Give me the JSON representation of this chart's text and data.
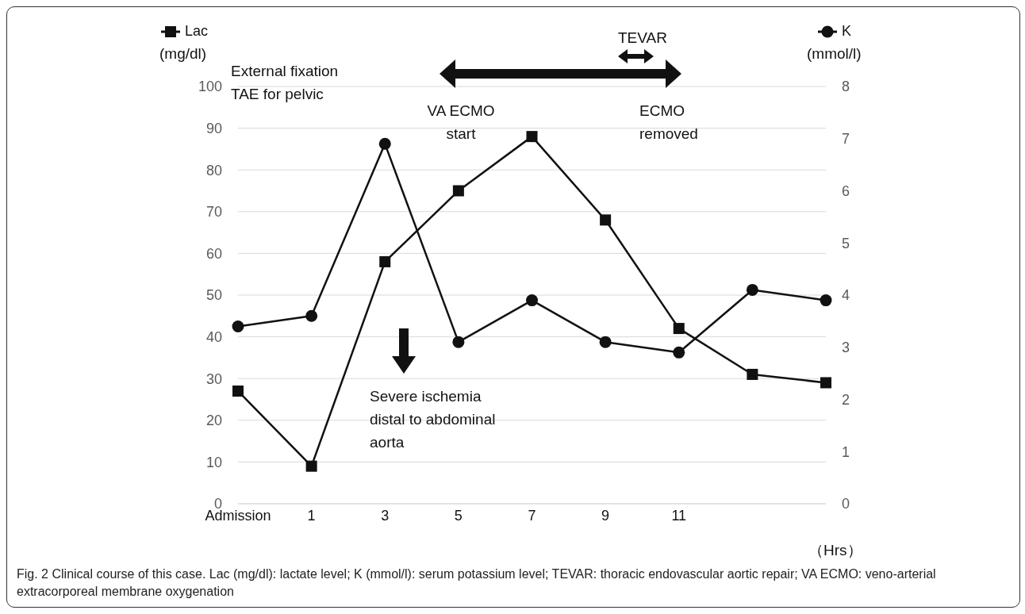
{
  "chart_data": {
    "type": "line",
    "categories": [
      "Admission",
      "1",
      "3",
      "5",
      "7",
      "9",
      "11",
      null,
      null
    ],
    "series": [
      {
        "name": "Lac",
        "color": "#111111",
        "marker": "square",
        "values": [
          27,
          9,
          58,
          75,
          88,
          68,
          42,
          31,
          29
        ]
      },
      {
        "name": "K",
        "color": "#111111",
        "marker": "circle",
        "axis": "y2",
        "values": [
          3.4,
          3.6,
          6.9,
          3.1,
          3.9,
          3.1,
          2.9,
          4.1,
          3.9
        ]
      }
    ],
    "ylabel": "(mg/dl)",
    "y2label": "(mmol/l)",
    "xlabel": "（Hrs）",
    "ylim": [
      0,
      100
    ],
    "yticks": [
      0,
      10,
      20,
      30,
      40,
      50,
      60,
      70,
      80,
      90,
      100
    ],
    "y2lim": [
      0,
      8
    ],
    "y2ticks": [
      0,
      1,
      2,
      3,
      4,
      5,
      6,
      7,
      8
    ],
    "grid": "y",
    "legend": "top",
    "line_style": "solid",
    "annotations": [
      "External fixation\nTAE for pelvic",
      "TEVAR",
      "VA ECMO\nstart",
      "ECMO\nremoved",
      "Severe ischemia\ndistal to abdominal\naorta",
      "Fig. 2 Clinical course of this case. Lac (mg/dl): lactate level; K (mmol/l): serum potassium level; TEVAR: thoracic endovascular aortic repair; VA ECMO: veno-arterial extracorporeal membrane oxygenation"
    ]
  }
}
